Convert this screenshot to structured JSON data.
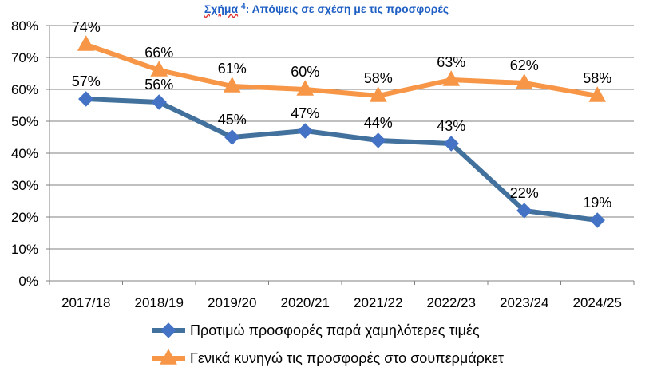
{
  "title": {
    "prefix": "Σχήμα",
    "number": "4",
    "text": ": Απόψεις σε σχέση με τις προσφορές"
  },
  "colors": {
    "series1": "#41719C",
    "series1_marker": "#4472C4",
    "series2": "#F79646",
    "grid": "#808080"
  },
  "chart_data": {
    "type": "line",
    "title": "Σχήμα 4: Απόψεις σε σχέση με τις προσφορές",
    "categories": [
      "2017/18",
      "2018/19",
      "2019/20",
      "2020/21",
      "2021/22",
      "2022/23",
      "2023/24",
      "2024/25"
    ],
    "y_ticks": [
      "0%",
      "10%",
      "20%",
      "30%",
      "40%",
      "50%",
      "60%",
      "70%",
      "80%"
    ],
    "ylim": [
      0,
      80
    ],
    "grid": true,
    "legend_position": "bottom",
    "series": [
      {
        "name": "Προτιμώ προσφορές παρά χαμηλότερες τιμές",
        "marker": "diamond",
        "values": [
          57,
          56,
          45,
          47,
          44,
          43,
          22,
          19
        ],
        "labels": [
          "57%",
          "56%",
          "45%",
          "47%",
          "44%",
          "43%",
          "22%",
          "19%"
        ]
      },
      {
        "name": "Γενικά κυνηγώ τις προσφορές στο σουπερμάρκετ",
        "marker": "triangle",
        "values": [
          74,
          66,
          61,
          60,
          58,
          63,
          62,
          58
        ],
        "labels": [
          "74%",
          "66%",
          "61%",
          "60%",
          "58%",
          "63%",
          "62%",
          "58%"
        ]
      }
    ]
  }
}
